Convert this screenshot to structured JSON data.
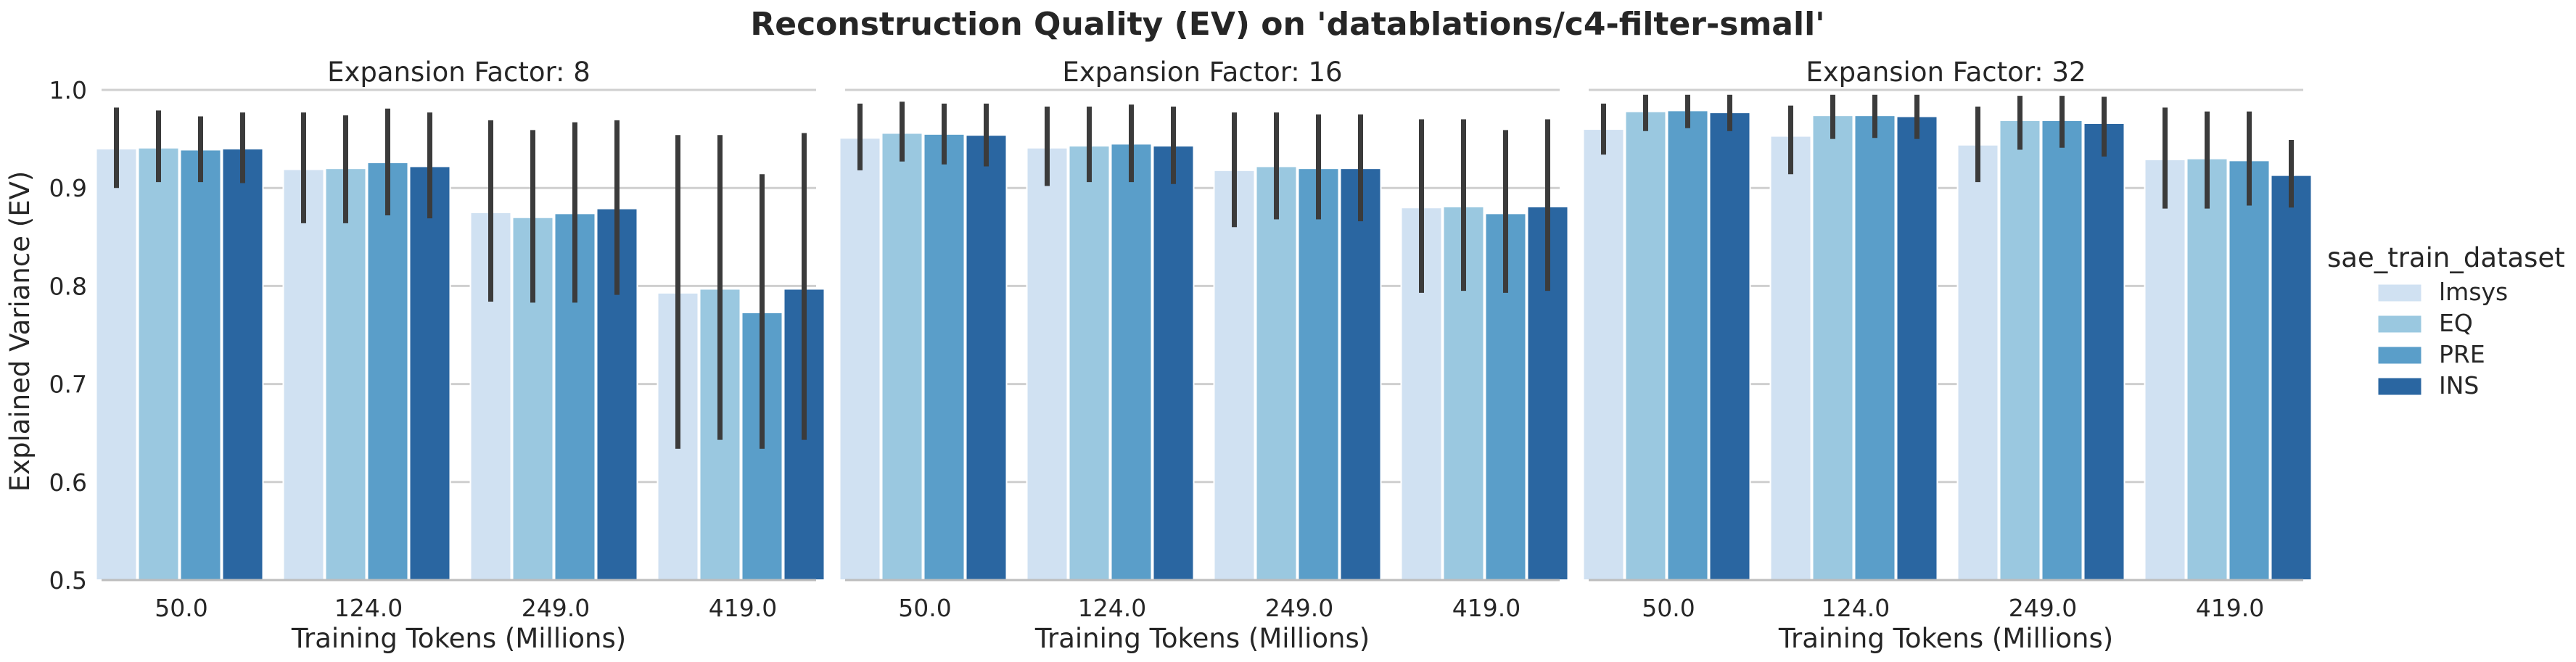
{
  "chart_data": {
    "type": "bar",
    "title": "Reconstruction Quality (EV) on 'datablations/c4-filter-small'",
    "xlabel": "Training Tokens (Millions)",
    "ylabel": "Explained Variance (EV)",
    "ylim": [
      0.5,
      1.0
    ],
    "yticks": [
      "0.5",
      "0.6",
      "0.7",
      "0.8",
      "0.9",
      "1.0"
    ],
    "categories": [
      "50.0",
      "124.0",
      "249.0",
      "419.0"
    ],
    "grid": "horizontal",
    "legend": {
      "title": "sae_train_dataset",
      "placement": "right",
      "entries": [
        "lmsys",
        "EQ",
        "PRE",
        "INS"
      ]
    },
    "colors": [
      "#d0e1f2",
      "#9ac8e0",
      "#5a9ec9",
      "#2a66a1"
    ],
    "error_bar_color": "#3b3b3b",
    "panels": [
      {
        "title": "Expansion Factor: 8",
        "series": [
          {
            "name": "lmsys",
            "values": [
              0.94,
              0.919,
              0.875,
              0.793
            ],
            "err_low": [
              0.9,
              0.864,
              0.784,
              0.634
            ],
            "err_high": [
              0.982,
              0.977,
              0.969,
              0.954
            ]
          },
          {
            "name": "EQ",
            "values": [
              0.941,
              0.92,
              0.87,
              0.797
            ],
            "err_low": [
              0.906,
              0.864,
              0.783,
              0.643
            ],
            "err_high": [
              0.979,
              0.974,
              0.959,
              0.954
            ]
          },
          {
            "name": "PRE",
            "values": [
              0.939,
              0.926,
              0.874,
              0.773
            ],
            "err_low": [
              0.906,
              0.872,
              0.783,
              0.634
            ],
            "err_high": [
              0.973,
              0.981,
              0.967,
              0.914
            ]
          },
          {
            "name": "INS",
            "values": [
              0.94,
              0.922,
              0.879,
              0.797
            ],
            "err_low": [
              0.905,
              0.869,
              0.791,
              0.643
            ],
            "err_high": [
              0.977,
              0.977,
              0.969,
              0.956
            ]
          }
        ]
      },
      {
        "title": "Expansion Factor: 16",
        "series": [
          {
            "name": "lmsys",
            "values": [
              0.951,
              0.941,
              0.918,
              0.88
            ],
            "err_low": [
              0.918,
              0.902,
              0.86,
              0.793
            ],
            "err_high": [
              0.986,
              0.983,
              0.977,
              0.97
            ]
          },
          {
            "name": "EQ",
            "values": [
              0.956,
              0.943,
              0.922,
              0.881
            ],
            "err_low": [
              0.927,
              0.906,
              0.868,
              0.795
            ],
            "err_high": [
              0.988,
              0.983,
              0.977,
              0.97
            ]
          },
          {
            "name": "PRE",
            "values": [
              0.955,
              0.945,
              0.92,
              0.874
            ],
            "err_low": [
              0.924,
              0.906,
              0.868,
              0.793
            ],
            "err_high": [
              0.986,
              0.985,
              0.975,
              0.959
            ]
          },
          {
            "name": "INS",
            "values": [
              0.954,
              0.943,
              0.92,
              0.881
            ],
            "err_low": [
              0.922,
              0.904,
              0.866,
              0.795
            ],
            "err_high": [
              0.986,
              0.983,
              0.975,
              0.97
            ]
          }
        ]
      },
      {
        "title": "Expansion Factor: 32",
        "series": [
          {
            "name": "lmsys",
            "values": [
              0.96,
              0.953,
              0.944,
              0.929
            ],
            "err_low": [
              0.934,
              0.914,
              0.906,
              0.879
            ],
            "err_high": [
              0.986,
              0.984,
              0.983,
              0.982
            ]
          },
          {
            "name": "EQ",
            "values": [
              0.978,
              0.974,
              0.969,
              0.93
            ],
            "err_low": [
              0.958,
              0.95,
              0.939,
              0.879
            ],
            "err_high": [
              0.995,
              0.995,
              0.994,
              0.978
            ]
          },
          {
            "name": "PRE",
            "values": [
              0.979,
              0.974,
              0.969,
              0.928
            ],
            "err_low": [
              0.961,
              0.951,
              0.941,
              0.882
            ],
            "err_high": [
              0.995,
              0.995,
              0.994,
              0.978
            ]
          },
          {
            "name": "INS",
            "values": [
              0.977,
              0.973,
              0.966,
              0.913
            ],
            "err_low": [
              0.958,
              0.95,
              0.932,
              0.88
            ],
            "err_high": [
              0.995,
              0.995,
              0.993,
              0.949
            ]
          }
        ]
      }
    ]
  }
}
